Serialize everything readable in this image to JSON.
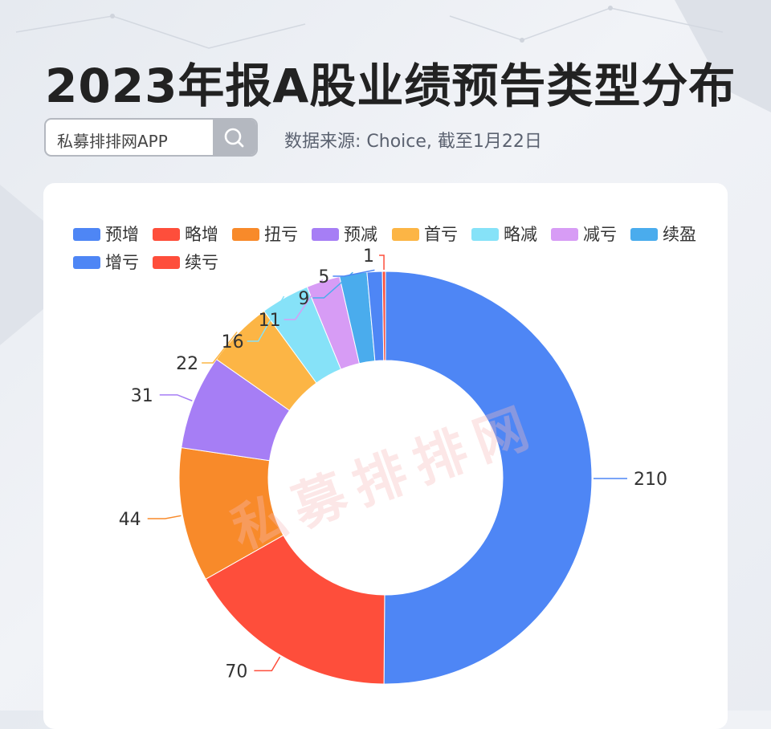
{
  "header": {
    "title": "2023年报A股业绩预告类型分布",
    "search_text": "私募排排网APP",
    "source": "数据来源: Choice, 截至1月22日"
  },
  "watermark": "私募排排网",
  "colors": {
    "预增": "#4e86f5",
    "略增": "#fe4e3b",
    "扭亏": "#f88a2a",
    "预减": "#a67ef5",
    "首亏": "#fcb545",
    "略减": "#86e2f8",
    "减亏": "#d79cf5",
    "续盈": "#4aaced",
    "增亏": "#4e86f5",
    "续亏": "#fe4e3b"
  },
  "chart_data": {
    "type": "pie",
    "variant": "donut",
    "title": "",
    "legend_position": "top",
    "categories": [
      "预增",
      "略增",
      "扭亏",
      "预减",
      "首亏",
      "略减",
      "减亏",
      "续盈",
      "增亏",
      "续亏"
    ],
    "values": [
      210,
      70,
      44,
      31,
      22,
      16,
      11,
      9,
      5,
      1
    ]
  }
}
